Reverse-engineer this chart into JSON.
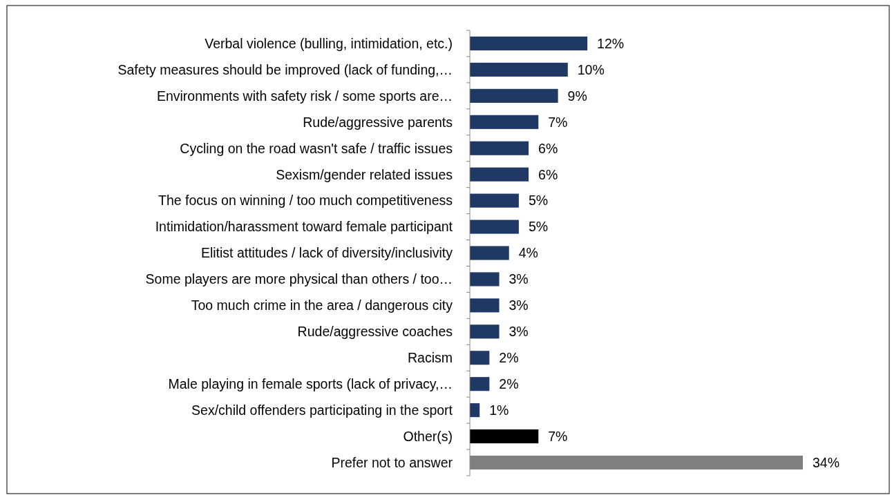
{
  "chart_data": {
    "type": "bar",
    "orientation": "horizontal",
    "value_labels": [
      "12%",
      "10%",
      "9%",
      "7%",
      "6%",
      "6%",
      "5%",
      "5%",
      "4%",
      "3%",
      "3%",
      "3%",
      "2%",
      "2%",
      "1%",
      "7%",
      "34%"
    ],
    "categories": [
      "Verbal violence (bulling, intimidation, etc.)",
      "Safety measures should be improved (lack of funding,…",
      "Environments with safety risk / some sports are…",
      "Rude/aggressive parents",
      "Cycling on the road wasn't safe / traffic issues",
      "Sexism/gender related issues",
      "The focus on winning / too much competitiveness",
      "Intimidation/harassment toward female participant",
      "Elitist attitudes / lack of diversity/inclusivity",
      "Some players are more physical than others / too…",
      "Too much crime in the area / dangerous city",
      "Rude/aggressive coaches",
      "Racism",
      "Male playing in female sports (lack of privacy,…",
      "Sex/child offenders participating in the sport",
      "Other(s)",
      "Prefer not to answer"
    ],
    "values": [
      12,
      10,
      9,
      7,
      6,
      6,
      5,
      5,
      4,
      3,
      3,
      3,
      2,
      2,
      1,
      7,
      34
    ],
    "colors": [
      "#1f3864",
      "#1f3864",
      "#1f3864",
      "#1f3864",
      "#1f3864",
      "#1f3864",
      "#1f3864",
      "#1f3864",
      "#1f3864",
      "#1f3864",
      "#1f3864",
      "#1f3864",
      "#1f3864",
      "#1f3864",
      "#1f3864",
      "#000000",
      "#808080"
    ]
  }
}
